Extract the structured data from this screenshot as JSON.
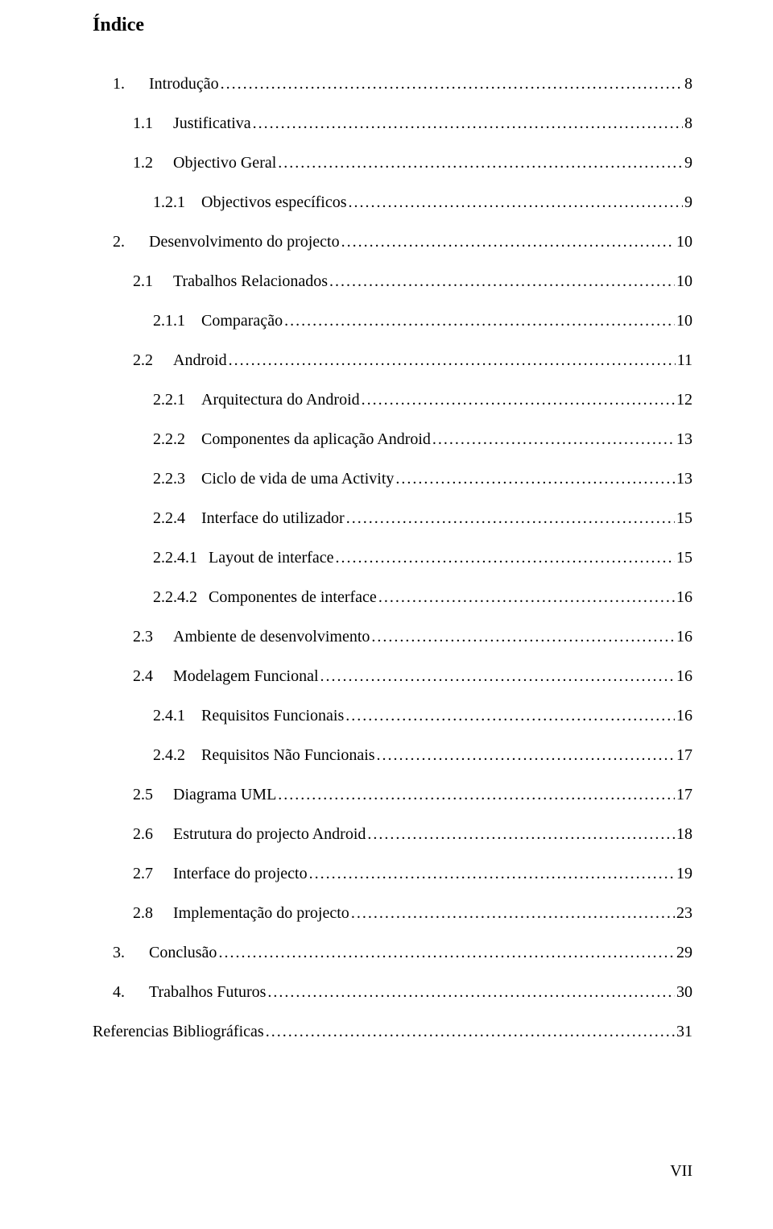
{
  "title": "Índice",
  "page_number": "VII",
  "entries": [
    {
      "indent": 1,
      "number": "1.",
      "gap": "wide",
      "text": "Introdução",
      "page": "8"
    },
    {
      "indent": 2,
      "number": "1.1",
      "gap": "med",
      "text": "Justificativa",
      "page": "8"
    },
    {
      "indent": 2,
      "number": "1.2",
      "gap": "med",
      "text": "Objectivo Geral",
      "page": "9"
    },
    {
      "indent": 3,
      "number": "1.2.1",
      "gap": "sm",
      "text": "Objectivos específicos",
      "page": "9"
    },
    {
      "indent": 1,
      "number": "2.",
      "gap": "wide",
      "text": "Desenvolvimento do projecto",
      "page": "10"
    },
    {
      "indent": 2,
      "number": "2.1",
      "gap": "med",
      "text": "Trabalhos Relacionados",
      "page": "10"
    },
    {
      "indent": 3,
      "number": "2.1.1",
      "gap": "sm",
      "text": "Comparação",
      "page": "10"
    },
    {
      "indent": 2,
      "number": "2.2",
      "gap": "med",
      "text": "Android",
      "page": "11"
    },
    {
      "indent": 3,
      "number": "2.2.1",
      "gap": "sm",
      "text": "Arquitectura do Android",
      "page": "12"
    },
    {
      "indent": 3,
      "number": "2.2.2",
      "gap": "sm",
      "text": "Componentes da aplicação Android",
      "page": "13"
    },
    {
      "indent": 3,
      "number": "2.2.3",
      "gap": "sm",
      "text": "Ciclo de vida de uma Activity",
      "page": "13"
    },
    {
      "indent": 3,
      "number": "2.2.4",
      "gap": "sm",
      "text": "Interface do utilizador",
      "page": "15"
    },
    {
      "indent": 3,
      "number": "2.2.4.1",
      "gap": "xs",
      "text": "Layout de interface",
      "page": "15"
    },
    {
      "indent": 3,
      "number": "2.2.4.2",
      "gap": "xs",
      "text": "Componentes de interface",
      "page": "16"
    },
    {
      "indent": 2,
      "number": "2.3",
      "gap": "med",
      "text": "Ambiente de desenvolvimento",
      "page": "16"
    },
    {
      "indent": 2,
      "number": "2.4",
      "gap": "med",
      "text": "Modelagem Funcional",
      "page": "16"
    },
    {
      "indent": 3,
      "number": "2.4.1",
      "gap": "sm",
      "text": "Requisitos Funcionais",
      "page": "16"
    },
    {
      "indent": 3,
      "number": "2.4.2",
      "gap": "sm",
      "text": "Requisitos Não Funcionais",
      "page": "17"
    },
    {
      "indent": 2,
      "number": "2.5",
      "gap": "med",
      "text": "Diagrama UML",
      "page": "17"
    },
    {
      "indent": 2,
      "number": "2.6",
      "gap": "med",
      "text": "Estrutura do projecto Android",
      "page": "18"
    },
    {
      "indent": 2,
      "number": "2.7",
      "gap": "med",
      "text": "Interface do projecto",
      "page": "19"
    },
    {
      "indent": 2,
      "number": "2.8",
      "gap": "med",
      "text": "Implementação do projecto",
      "page": "23"
    },
    {
      "indent": 1,
      "number": "3.",
      "gap": "wide",
      "text": "Conclusão",
      "page": "29"
    },
    {
      "indent": 1,
      "number": "4.",
      "gap": "wide",
      "text": "Trabalhos Futuros",
      "page": "30"
    },
    {
      "indent": 0,
      "number": "",
      "gap": "",
      "text": "Referencias Bibliográficas",
      "page": "31"
    }
  ]
}
